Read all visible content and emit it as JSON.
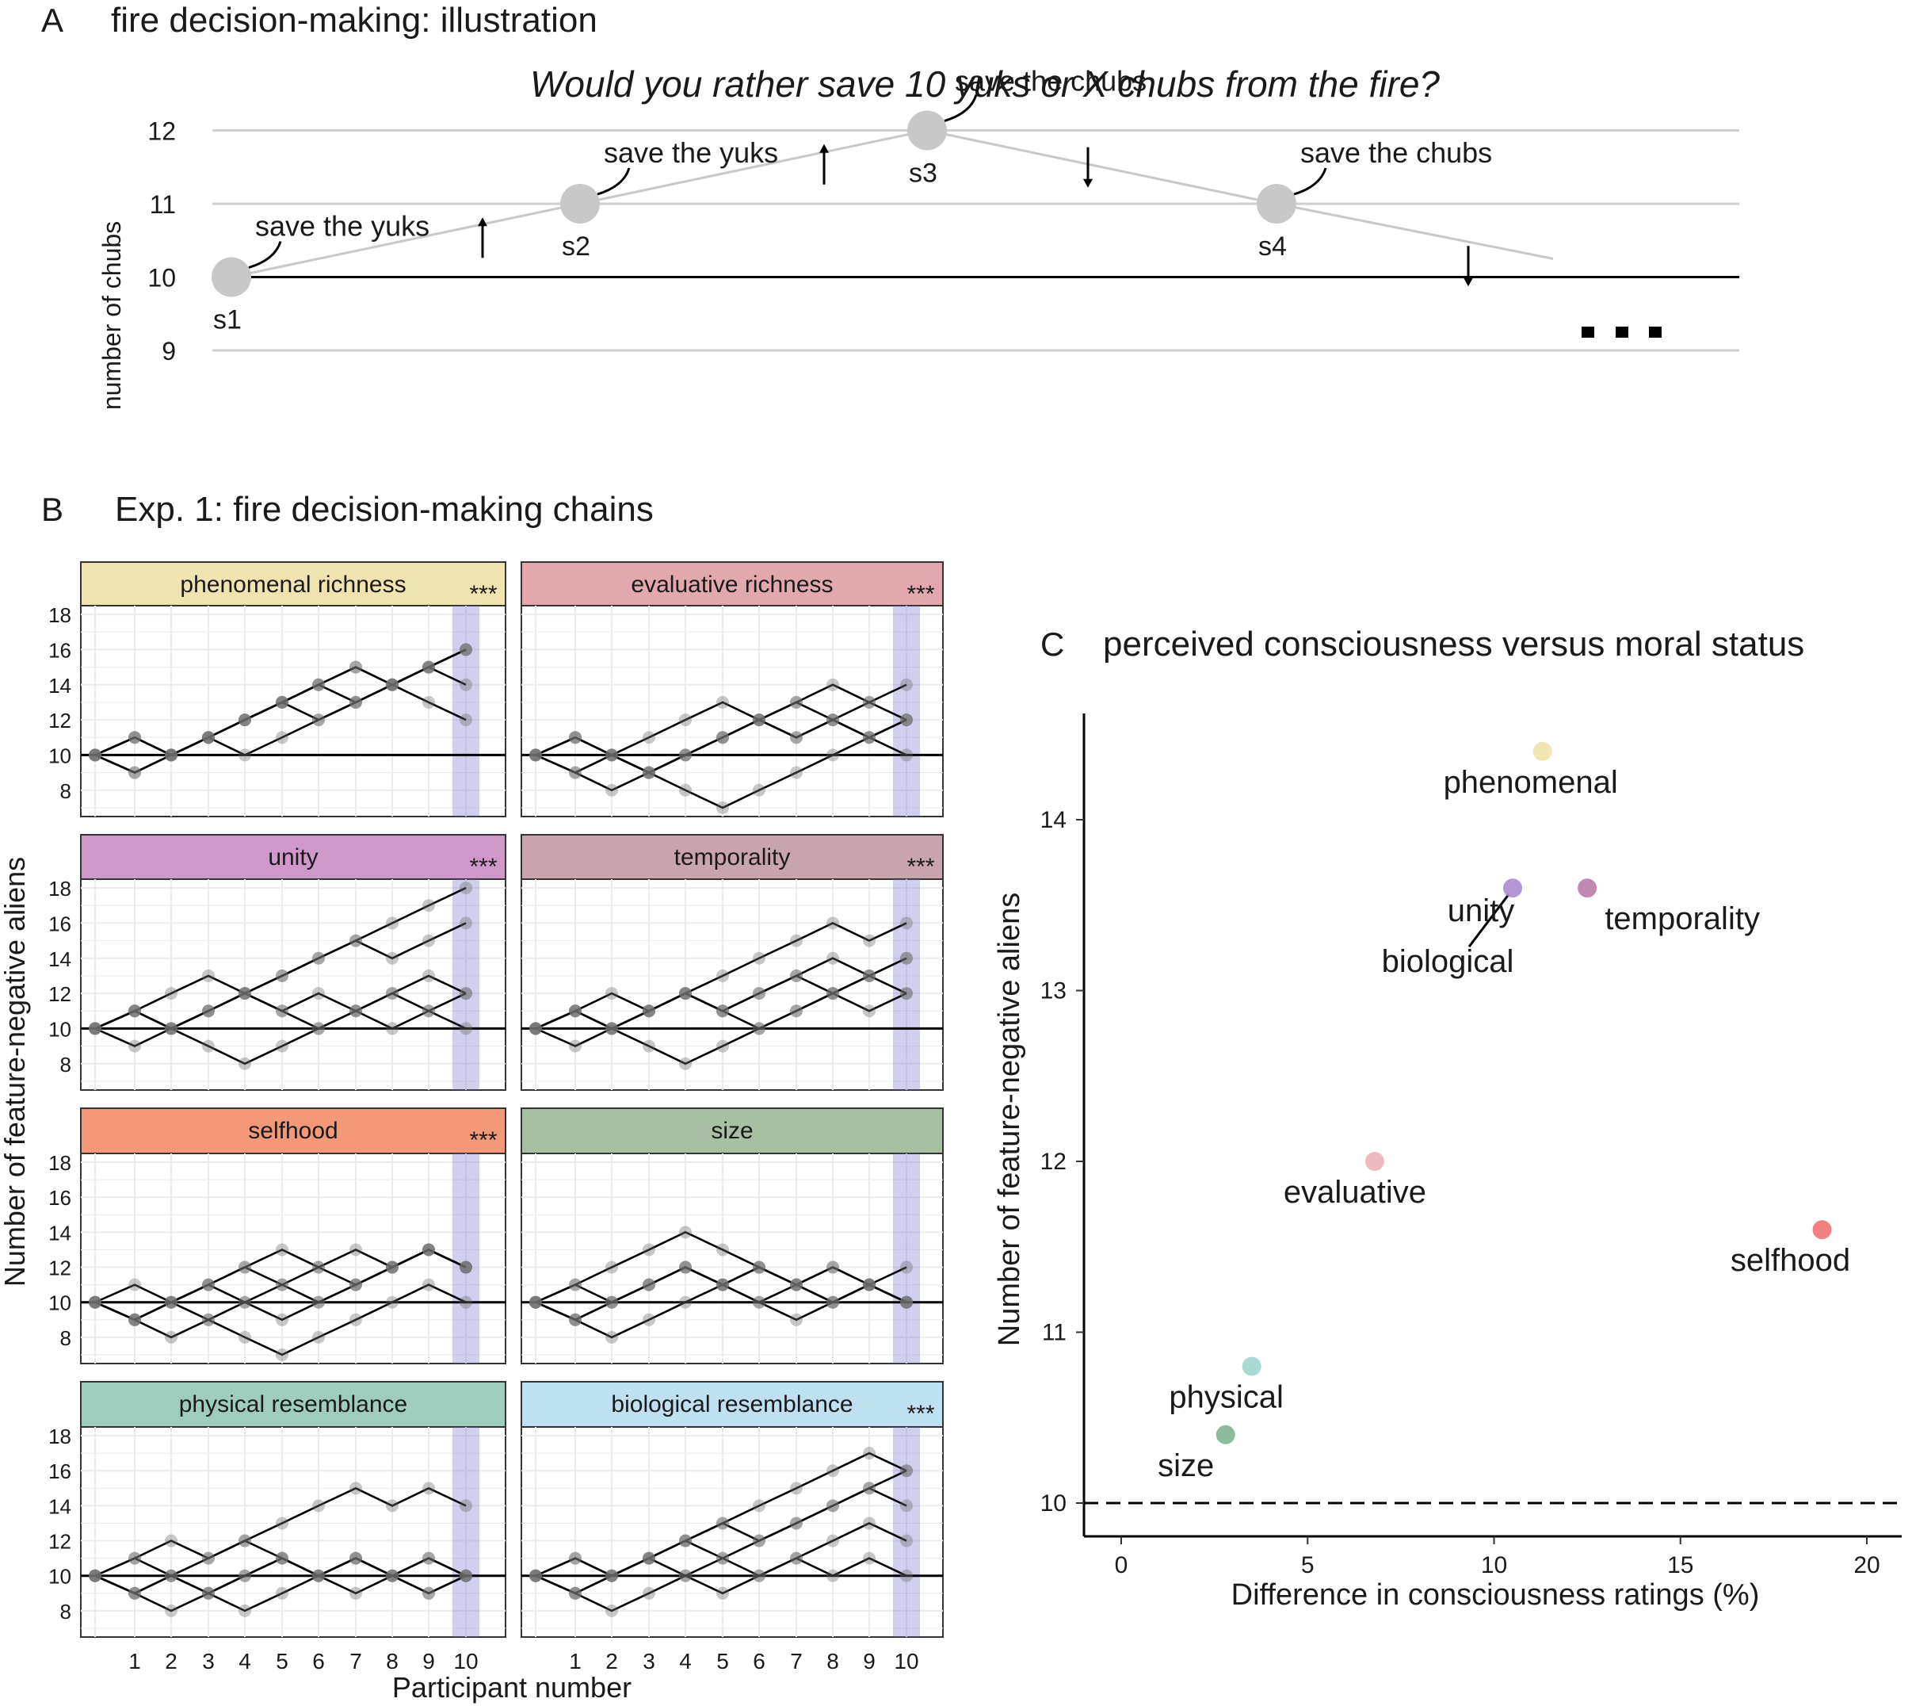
{
  "chart_data": [
    {
      "panel": "A",
      "panel_title": "fire decision-making: illustration",
      "type": "line",
      "question": "Would you rather save 10 yuks or X chubs from the fire?",
      "ylabel": "number of chubs",
      "yticks": [
        9,
        10,
        11,
        12
      ],
      "ylim": [
        9,
        12
      ],
      "steps": [
        {
          "label": "s1",
          "value": 10,
          "choice": "save the yuks",
          "arrow": "up"
        },
        {
          "label": "s2",
          "value": 11,
          "choice": "save the yuks",
          "arrow": "up"
        },
        {
          "label": "s3",
          "value": 12,
          "choice": "save the chubs",
          "arrow": "down"
        },
        {
          "label": "s4",
          "value": 11,
          "choice": "save the chubs",
          "arrow": "down"
        }
      ],
      "continuation": "..."
    },
    {
      "panel": "B",
      "panel_title": "Exp. 1: fire decision-making chains",
      "type": "line",
      "xlabel": "Participant number",
      "ylabel": "Number of feature-negative aliens",
      "xticks": [
        1,
        2,
        3,
        4,
        5,
        6,
        7,
        8,
        9,
        10
      ],
      "yticks": [
        8,
        10,
        12,
        14,
        16,
        18
      ],
      "ylim": [
        6.5,
        18.5
      ],
      "baseline": 10,
      "significance_label": "***",
      "facets": [
        {
          "name": "phenomenal richness",
          "color": "#efe4b0",
          "sig": true,
          "chains": [
            [
              10,
              11,
              10,
              11,
              12,
              13,
              14,
              15,
              14,
              15,
              16
            ],
            [
              10,
              9,
              10,
              11,
              12,
              13,
              14,
              13,
              14,
              15,
              14
            ],
            [
              10,
              11,
              10,
              11,
              12,
              13,
              12,
              13,
              14,
              13,
              12
            ],
            [
              10,
              9,
              10,
              11,
              10,
              11,
              12,
              13,
              14,
              15,
              16
            ],
            [
              10,
              11,
              10,
              11,
              12,
              13,
              14,
              15,
              14,
              15,
              16
            ]
          ]
        },
        {
          "name": "evaluative richness",
          "color": "#e3a8ad",
          "sig": true,
          "chains": [
            [
              10,
              11,
              10,
              11,
              12,
              13,
              12,
              13,
              14,
              13,
              14
            ],
            [
              10,
              9,
              8,
              9,
              10,
              11,
              12,
              13,
              12,
              13,
              12
            ],
            [
              10,
              11,
              10,
              9,
              8,
              7,
              8,
              9,
              10,
              11,
              10
            ],
            [
              10,
              9,
              10,
              9,
              10,
              11,
              12,
              11,
              12,
              11,
              12
            ],
            [
              10,
              11,
              10,
              9,
              10,
              11,
              12,
              11,
              12,
              11,
              12
            ]
          ]
        },
        {
          "name": "unity",
          "color": "#cf98c8",
          "sig": true,
          "chains": [
            [
              10,
              11,
              10,
              11,
              12,
              13,
              14,
              15,
              16,
              17,
              18
            ],
            [
              10,
              9,
              10,
              11,
              12,
              13,
              14,
              15,
              14,
              15,
              16
            ],
            [
              10,
              11,
              12,
              13,
              12,
              11,
              10,
              11,
              12,
              13,
              12
            ],
            [
              10,
              11,
              10,
              9,
              8,
              9,
              10,
              11,
              12,
              11,
              10
            ],
            [
              10,
              11,
              10,
              11,
              12,
              11,
              12,
              11,
              10,
              11,
              12
            ]
          ]
        },
        {
          "name": "temporality",
          "color": "#c8a4ac",
          "sig": true,
          "chains": [
            [
              10,
              11,
              10,
              11,
              12,
              13,
              14,
              15,
              16,
              15,
              16
            ],
            [
              10,
              9,
              10,
              11,
              12,
              11,
              12,
              13,
              12,
              13,
              14
            ],
            [
              10,
              11,
              10,
              9,
              8,
              9,
              10,
              11,
              12,
              13,
              12
            ],
            [
              10,
              11,
              12,
              11,
              12,
              11,
              12,
              13,
              14,
              13,
              14
            ],
            [
              10,
              11,
              10,
              11,
              12,
              11,
              10,
              11,
              12,
              11,
              12
            ]
          ]
        },
        {
          "name": "selfhood",
          "color": "#f4987a",
          "sig": true,
          "chains": [
            [
              10,
              9,
              10,
              11,
              12,
              13,
              12,
              13,
              12,
              13,
              12
            ],
            [
              10,
              11,
              10,
              11,
              12,
              11,
              10,
              11,
              12,
              13,
              12
            ],
            [
              10,
              9,
              8,
              9,
              10,
              11,
              12,
              11,
              12,
              13,
              12
            ],
            [
              10,
              9,
              10,
              11,
              10,
              9,
              10,
              11,
              12,
              13,
              12
            ],
            [
              10,
              9,
              10,
              9,
              8,
              7,
              8,
              9,
              10,
              11,
              10
            ]
          ]
        },
        {
          "name": "size",
          "color": "#a9bfa3",
          "sig": false,
          "chains": [
            [
              10,
              11,
              12,
              13,
              14,
              13,
              12,
              11,
              10,
              11,
              10
            ],
            [
              10,
              9,
              10,
              11,
              12,
              11,
              12,
              11,
              12,
              11,
              10
            ],
            [
              10,
              9,
              8,
              9,
              10,
              11,
              12,
              11,
              10,
              11,
              12
            ],
            [
              10,
              11,
              10,
              11,
              12,
              11,
              10,
              11,
              12,
              11,
              10
            ],
            [
              10,
              9,
              10,
              11,
              12,
              11,
              10,
              9,
              10,
              11,
              10
            ]
          ]
        },
        {
          "name": "physical resemblance",
          "color": "#9fcdbd",
          "sig": false,
          "chains": [
            [
              10,
              11,
              12,
              11,
              12,
              13,
              14,
              15,
              14,
              15,
              14
            ],
            [
              10,
              9,
              8,
              9,
              10,
              11,
              10,
              11,
              10,
              11,
              10
            ],
            [
              10,
              11,
              10,
              9,
              10,
              11,
              10,
              9,
              10,
              9,
              10
            ],
            [
              10,
              9,
              10,
              11,
              12,
              11,
              10,
              11,
              10,
              11,
              10
            ],
            [
              10,
              9,
              10,
              9,
              8,
              9,
              10,
              11,
              10,
              9,
              10
            ]
          ]
        },
        {
          "name": "biological resemblance",
          "color": "#bfe0f1",
          "sig": true,
          "chains": [
            [
              10,
              11,
              10,
              11,
              12,
              13,
              14,
              15,
              16,
              17,
              16
            ],
            [
              10,
              9,
              10,
              11,
              12,
              13,
              12,
              13,
              14,
              15,
              14
            ],
            [
              10,
              11,
              10,
              11,
              12,
              11,
              10,
              11,
              12,
              13,
              12
            ],
            [
              10,
              9,
              10,
              11,
              10,
              9,
              10,
              11,
              10,
              11,
              10
            ],
            [
              10,
              9,
              8,
              9,
              10,
              11,
              12,
              13,
              14,
              15,
              16
            ]
          ]
        }
      ]
    },
    {
      "panel": "C",
      "panel_title": "perceived consciousness versus moral status",
      "type": "scatter",
      "xlabel": "Difference in consciousness ratings (%)",
      "ylabel": "Number of feature-negative aliens",
      "xlim": [
        -1,
        20.9
      ],
      "ylim": [
        9.8,
        14.7
      ],
      "xticks": [
        0,
        5,
        10,
        15,
        20
      ],
      "yticks": [
        10,
        11,
        12,
        13,
        14
      ],
      "reference_line": 10,
      "points": [
        {
          "label": "phenomenal",
          "x": 11.3,
          "y": 14.4,
          "color": "#ede3a8",
          "text_color": "#1a1a1a"
        },
        {
          "label": "unity",
          "x": 10.5,
          "y": 13.6,
          "color": "#b08ad0",
          "text_color": "#1a1a1a"
        },
        {
          "label": "biological",
          "x": 10.5,
          "y": 13.6,
          "color": "#b08ad0",
          "text_color": "#1a1a1a"
        },
        {
          "label": "temporality",
          "x": 12.5,
          "y": 13.6,
          "color": "#b87ca8",
          "text_color": "#1a1a1a"
        },
        {
          "label": "evaluative",
          "x": 6.8,
          "y": 12.0,
          "color": "#eab2b8",
          "text_color": "#1a1a1a"
        },
        {
          "label": "selfhood",
          "x": 18.8,
          "y": 11.6,
          "color": "#f07272",
          "text_color": "#e8232b"
        },
        {
          "label": "physical",
          "x": 3.5,
          "y": 10.8,
          "color": "#9ed6cc",
          "text_color": "#1a1a1a"
        },
        {
          "label": "size",
          "x": 2.8,
          "y": 10.4,
          "color": "#7fb591",
          "text_color": "#1a1a1a"
        }
      ]
    }
  ]
}
